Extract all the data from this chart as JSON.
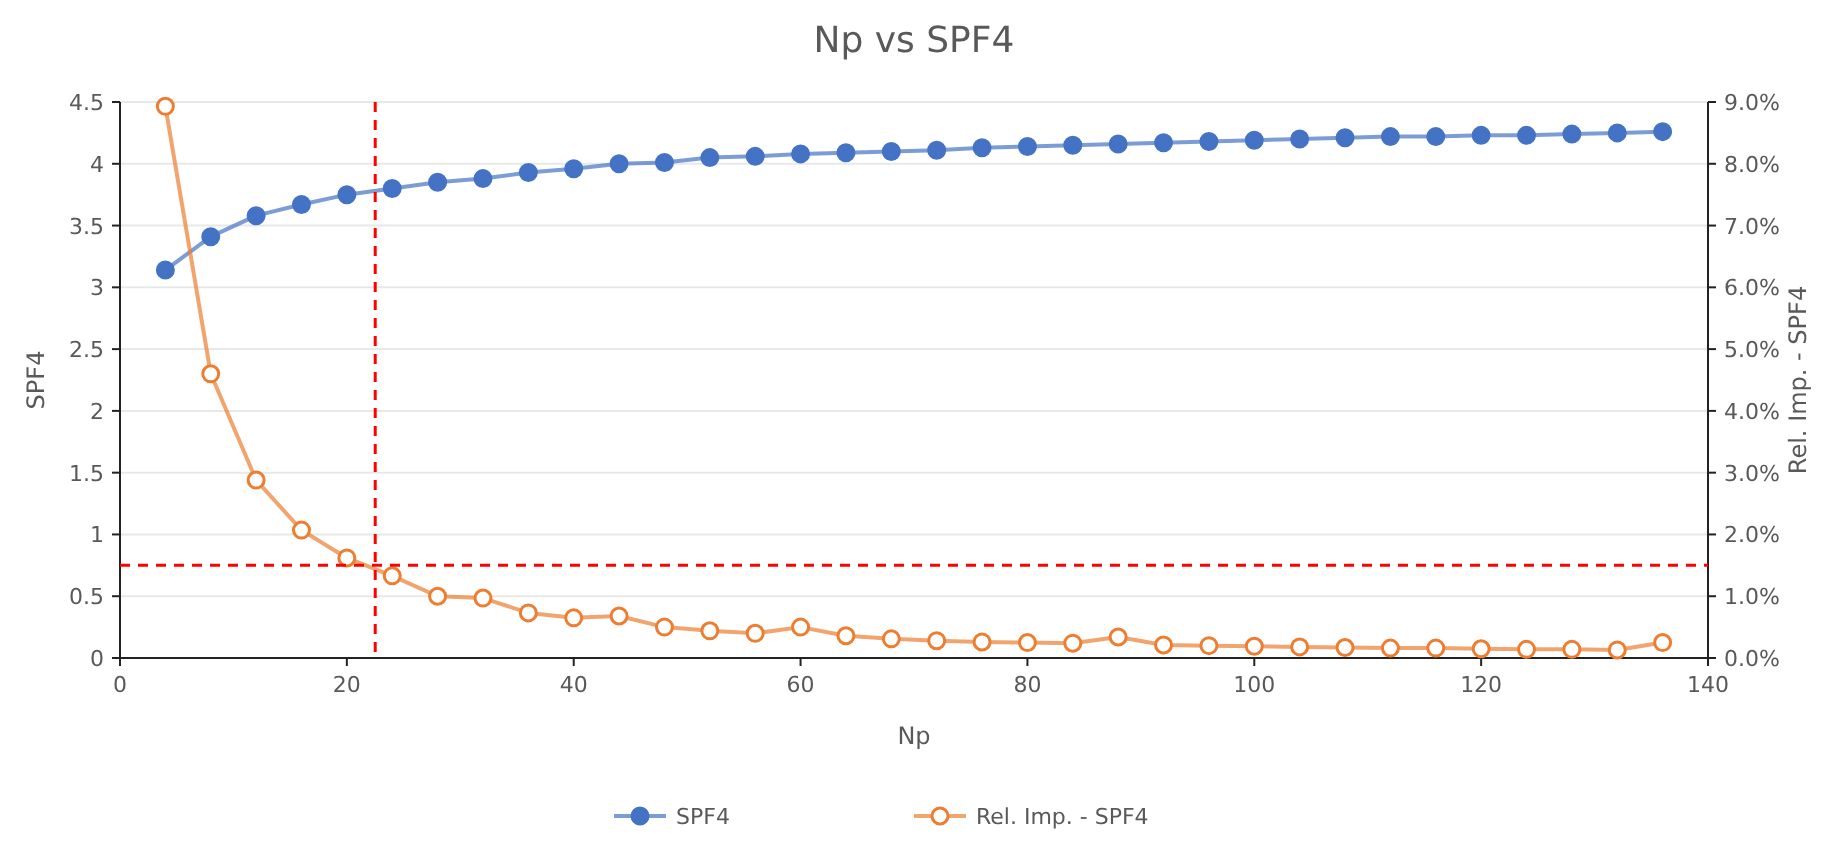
{
  "chart_data": {
    "type": "line",
    "title": "Np vs SPF4",
    "xlabel": "Np",
    "ylabel": "SPF4",
    "y2label": "Rel. Imp. - SPF4",
    "x": [
      4,
      8,
      12,
      16,
      20,
      24,
      28,
      32,
      36,
      40,
      44,
      48,
      52,
      56,
      60,
      64,
      68,
      72,
      76,
      80,
      84,
      88,
      92,
      96,
      100,
      104,
      108,
      112,
      116,
      120,
      124,
      128,
      132,
      136
    ],
    "series": [
      {
        "name": "SPF4",
        "color": "#4472c4",
        "values": [
          3.14,
          3.41,
          3.58,
          3.67,
          3.75,
          3.8,
          3.85,
          3.88,
          3.93,
          3.96,
          4.0,
          4.01,
          4.05,
          4.06,
          4.08,
          4.09,
          4.1,
          4.11,
          4.13,
          4.14,
          4.15,
          4.16,
          4.17,
          4.18,
          4.19,
          4.2,
          4.21,
          4.22,
          4.22,
          4.23,
          4.23,
          4.24,
          4.25,
          4.26
        ]
      },
      {
        "name": "Rel. Imp. - SPF4",
        "color": "#ed7d31",
        "axis": "y2",
        "values": [
          8.93,
          4.6,
          2.88,
          2.07,
          1.62,
          1.33,
          1.0,
          0.97,
          0.73,
          0.65,
          0.68,
          0.5,
          0.44,
          0.4,
          0.5,
          0.36,
          0.31,
          0.28,
          0.26,
          0.25,
          0.24,
          0.34,
          0.21,
          0.2,
          0.19,
          0.18,
          0.17,
          0.16,
          0.16,
          0.15,
          0.14,
          0.14,
          0.13,
          0.25
        ]
      }
    ],
    "xlim": [
      0,
      140
    ],
    "xticks": [
      0,
      20,
      40,
      60,
      80,
      100,
      120,
      140
    ],
    "ylim": [
      0,
      4.5
    ],
    "yticks": [
      0,
      0.5,
      1,
      1.5,
      2,
      2.5,
      3,
      3.5,
      4,
      4.5
    ],
    "y2lim": [
      0,
      9
    ],
    "y2ticks": [
      {
        "value": 0,
        "label": "0.0%"
      },
      {
        "value": 1,
        "label": "1.0%"
      },
      {
        "value": 2,
        "label": "2.0%"
      },
      {
        "value": 3,
        "label": "3.0%"
      },
      {
        "value": 4,
        "label": "4.0%"
      },
      {
        "value": 5,
        "label": "5.0%"
      },
      {
        "value": 6,
        "label": "6.0%"
      },
      {
        "value": 7,
        "label": "7.0%"
      },
      {
        "value": 8,
        "label": "8.0%"
      },
      {
        "value": 9,
        "label": "9.0%"
      }
    ],
    "ref_lines": [
      {
        "axis": "x",
        "value": 22.5,
        "color": "#ff0000",
        "line_style": "dashed"
      },
      {
        "axis": "y2",
        "value": 1.5,
        "color": "#ff0000",
        "line_style": "dashed"
      }
    ],
    "grid": "y",
    "legend": "bottom",
    "marker": "circle",
    "line_style": "solid"
  }
}
